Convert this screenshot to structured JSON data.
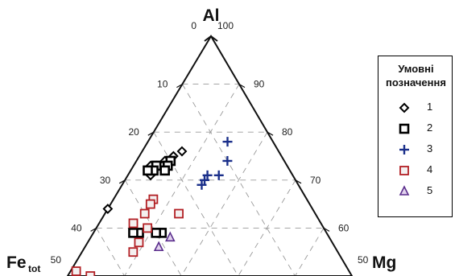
{
  "chart_data": {
    "type": "scatter",
    "subtype": "ternary",
    "vertices": {
      "top": {
        "label": "Al"
      },
      "left": {
        "label": "Fe",
        "subscript": "tot"
      },
      "right": {
        "label": "Mg"
      }
    },
    "ranges": {
      "top": [
        50,
        100
      ],
      "left": [
        0,
        50
      ],
      "right": [
        50,
        100
      ]
    },
    "ticks": {
      "left_side": [
        "0",
        "10",
        "20",
        "30",
        "40",
        "50"
      ],
      "right_side": [
        "100",
        "90",
        "80",
        "70",
        "60",
        "50"
      ]
    },
    "grid": true,
    "legend": {
      "title_line1": "Умовні",
      "title_line2": "позначення",
      "position": "right",
      "entries": [
        {
          "label": "1",
          "marker": "diamond",
          "color": "#000000"
        },
        {
          "label": "2",
          "marker": "square-thick",
          "color": "#000000"
        },
        {
          "label": "3",
          "marker": "plus",
          "color": "#1a2f8a"
        },
        {
          "label": "4",
          "marker": "square",
          "color": "#b21f24"
        },
        {
          "label": "5",
          "marker": "triangle",
          "color": "#5a2d8c"
        }
      ]
    },
    "series": [
      {
        "name": "1",
        "points": [
          {
            "fe": 17,
            "mg": 7
          },
          {
            "fe": 19,
            "mg": 6
          },
          {
            "fe": 21,
            "mg": 5
          },
          {
            "fe": 22,
            "mg": 5
          },
          {
            "fe": 23,
            "mg": 4
          },
          {
            "fe": 24,
            "mg": 3
          },
          {
            "fe": 24,
            "mg": 4
          },
          {
            "fe": 25,
            "mg": 3
          },
          {
            "fe": 25,
            "mg": 4
          },
          {
            "fe": 36,
            "mg": 0
          }
        ]
      },
      {
        "name": "2",
        "points": [
          {
            "fe": 20,
            "mg": 6
          },
          {
            "fe": 21,
            "mg": 6
          },
          {
            "fe": 22,
            "mg": 6
          },
          {
            "fe": 23,
            "mg": 4
          },
          {
            "fe": 24,
            "mg": 4
          },
          {
            "fe": 25,
            "mg": 3
          },
          {
            "fe": 29,
            "mg": 12
          },
          {
            "fe": 30,
            "mg": 11
          },
          {
            "fe": 33,
            "mg": 8
          },
          {
            "fe": 34,
            "mg": 7
          }
        ]
      },
      {
        "name": "3",
        "points": [
          {
            "fe": 8,
            "mg": 14
          },
          {
            "fe": 10,
            "mg": 16
          },
          {
            "fe": 13,
            "mg": 16
          },
          {
            "fe": 15,
            "mg": 14
          },
          {
            "fe": 16,
            "mg": 14
          },
          {
            "fe": 17,
            "mg": 14
          }
        ]
      },
      {
        "name": "4",
        "points": [
          {
            "fe": 24,
            "mg": 13
          },
          {
            "fe": 27,
            "mg": 7
          },
          {
            "fe": 28,
            "mg": 7
          },
          {
            "fe": 30,
            "mg": 7
          },
          {
            "fe": 31,
            "mg": 9
          },
          {
            "fe": 33,
            "mg": 6
          },
          {
            "fe": 34,
            "mg": 9
          },
          {
            "fe": 36,
            "mg": 9
          },
          {
            "fe": 46,
            "mg": 4
          },
          {
            "fe": 48,
            "mg": 1
          }
        ]
      },
      {
        "name": "5",
        "points": [
          {
            "fe": 28,
            "mg": 14
          },
          {
            "fe": 31,
            "mg": 13
          }
        ]
      }
    ]
  }
}
